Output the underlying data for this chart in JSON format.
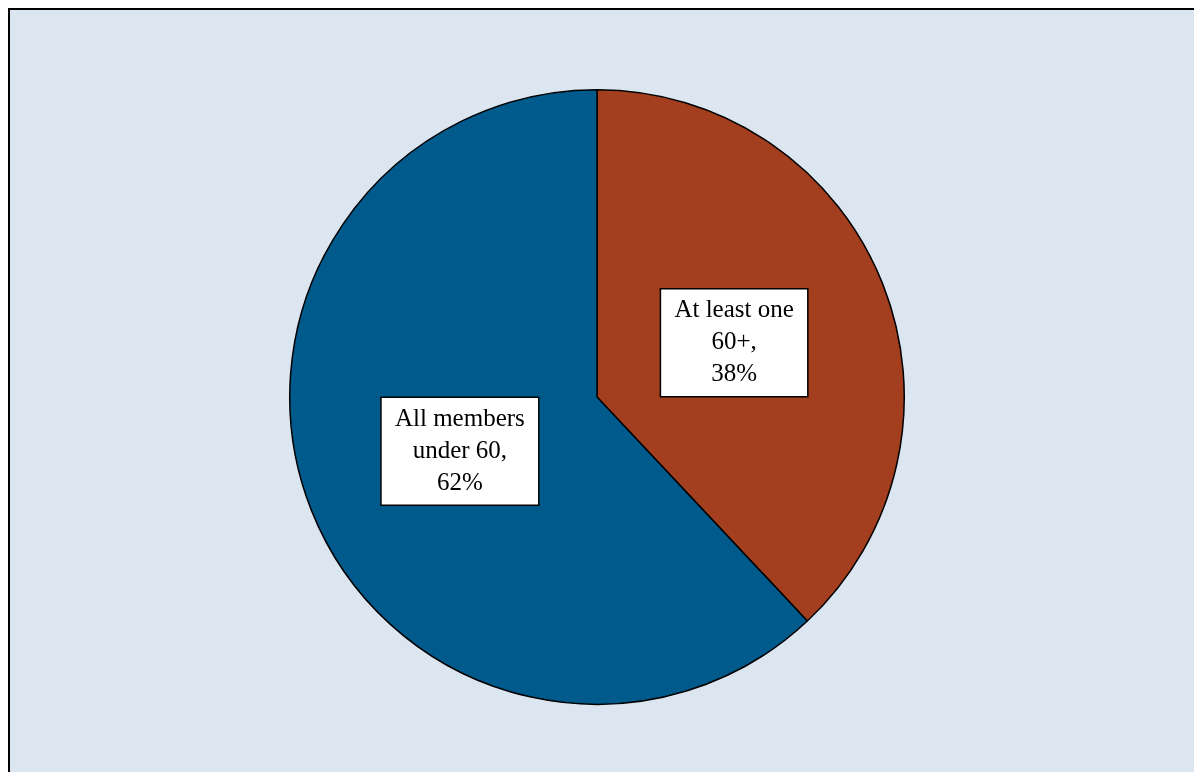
{
  "chart_data": {
    "type": "pie",
    "categories": [
      "At least one 60+",
      "All members under 60"
    ],
    "value_labels": [
      ", 38%",
      ", 62%"
    ],
    "values": [
      38,
      62
    ],
    "colors": [
      "#a33f1f",
      "#005a8c"
    ],
    "legend": false
  }
}
